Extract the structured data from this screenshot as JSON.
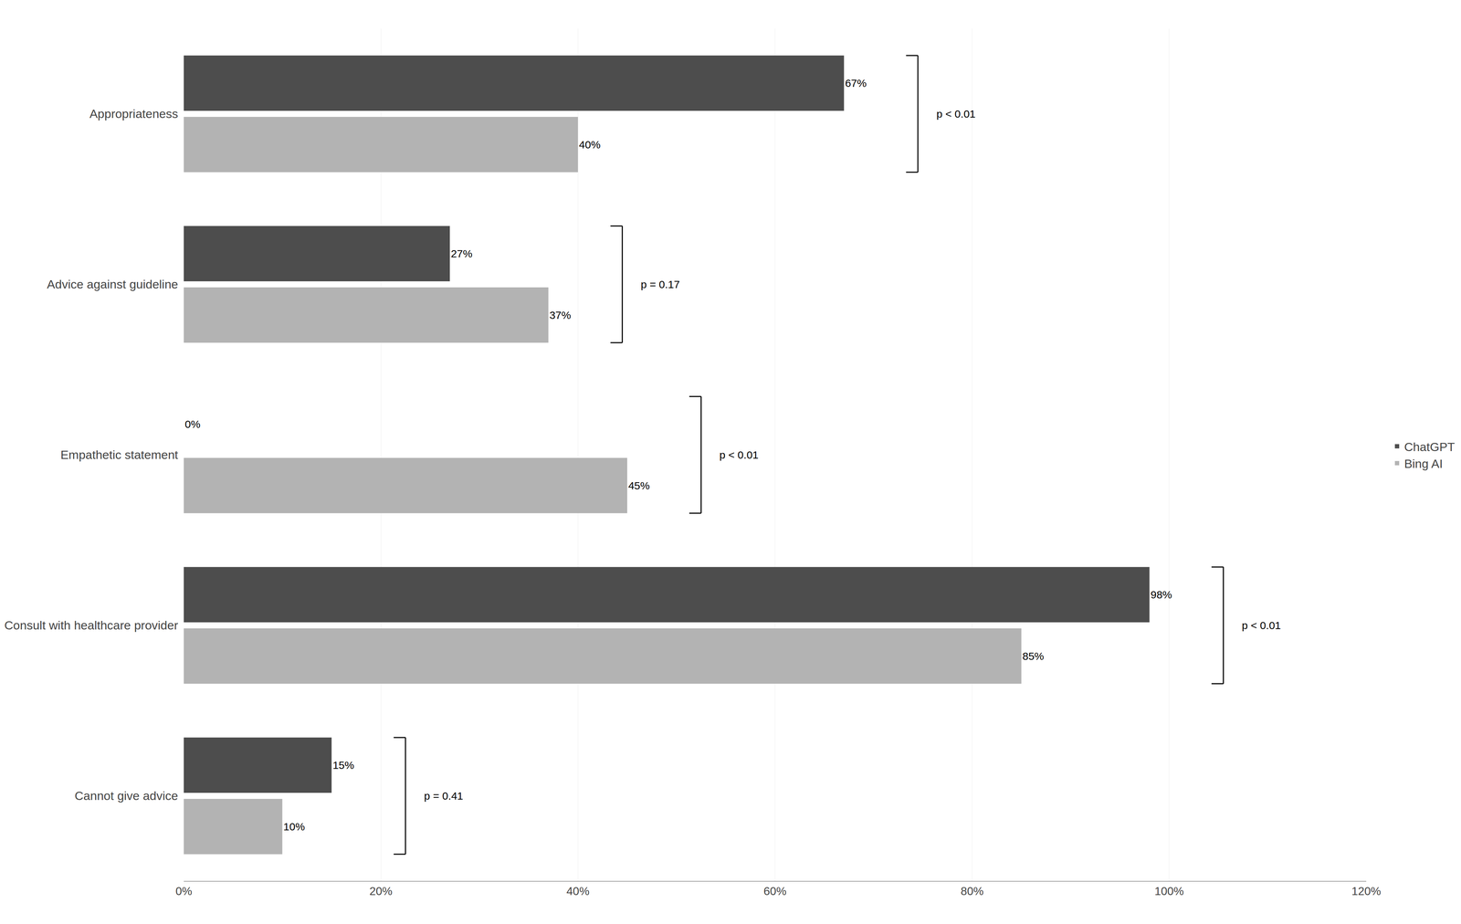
{
  "chart_data": {
    "type": "bar",
    "orientation": "horizontal",
    "categories": [
      "Appropriateness",
      "Advice against guideline",
      "Empathetic statement",
      "Consult with healthcare provider",
      "Cannot give advice"
    ],
    "series": [
      {
        "name": "ChatGPT",
        "color": "#4d4d4d",
        "values": [
          67,
          27,
          0,
          98,
          15
        ],
        "value_labels": [
          "67%",
          "27%",
          "0%",
          "98%",
          "15%"
        ]
      },
      {
        "name": "Bing AI",
        "color": "#b3b3b3",
        "values": [
          40,
          37,
          45,
          85,
          10
        ],
        "value_labels": [
          "40%",
          "37%",
          "45%",
          "85%",
          "10%"
        ]
      }
    ],
    "xlim": [
      0,
      120
    ],
    "xticks": [
      {
        "value": 0,
        "label": "0%"
      },
      {
        "value": 20,
        "label": "20%"
      },
      {
        "value": 40,
        "label": "40%"
      },
      {
        "value": 60,
        "label": "60%"
      },
      {
        "value": 80,
        "label": "80%"
      },
      {
        "value": 100,
        "label": "100%"
      },
      {
        "value": 120,
        "label": "120%"
      }
    ],
    "grid": true,
    "legend": "right",
    "data_labels": true,
    "annotations": [
      {
        "category": "Appropriateness",
        "text": "p < 0.01"
      },
      {
        "category": "Advice against guideline",
        "text": "p = 0.17"
      },
      {
        "category": "Empathetic statement",
        "text": "p < 0.01"
      },
      {
        "category": "Consult with healthcare provider",
        "text": "p < 0.01"
      },
      {
        "category": "Cannot give advice",
        "text": "p = 0.41"
      }
    ]
  }
}
